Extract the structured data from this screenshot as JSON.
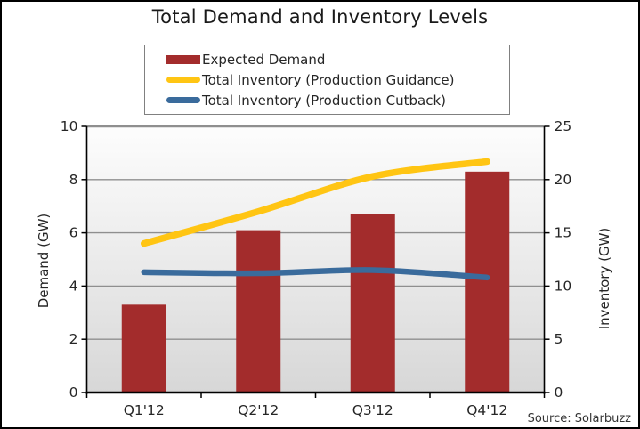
{
  "title": "Total Demand and Inventory Levels",
  "source": "Source: Solarbuzz",
  "colors": {
    "bar": "#A32C2C",
    "guidance_line": "#FFC513",
    "cutback_line": "#3A6B9C",
    "gridline": "#8F8F8F",
    "axis": "#000000",
    "plot_gradient_top": "#FDFDFD",
    "plot_gradient_mid": "#E9E9E9",
    "plot_gradient_bottom": "#D7D7D7"
  },
  "legend": {
    "items": [
      {
        "label": "Expected Demand",
        "type": "bar",
        "color": "#A32C2C"
      },
      {
        "label": "Total Inventory (Production Guidance)",
        "type": "line",
        "color": "#FFC513"
      },
      {
        "label": "Total Inventory (Production Cutback)",
        "type": "line",
        "color": "#3A6B9C"
      }
    ]
  },
  "chart_data": {
    "type": "bar",
    "subtype": "bar-line-combo",
    "title": "Total Demand and Inventory Levels",
    "categories": [
      "Q1'12",
      "Q2'12",
      "Q3'12",
      "Q4'12"
    ],
    "series": [
      {
        "name": "Expected Demand",
        "type": "bar",
        "axis": "left",
        "color": "#A32C2C",
        "values": [
          3.3,
          6.1,
          6.7,
          8.3
        ]
      },
      {
        "name": "Total Inventory (Production Guidance)",
        "type": "line",
        "axis": "right",
        "color": "#FFC513",
        "values": [
          14,
          17,
          20.3,
          21.7
        ]
      },
      {
        "name": "Total Inventory (Production Cutback)",
        "type": "line",
        "axis": "right",
        "color": "#3A6B9C",
        "values": [
          11.3,
          11.2,
          11.5,
          10.8
        ]
      }
    ],
    "left_axis": {
      "label": "Demand (GW)",
      "min": 0,
      "max": 10,
      "ticks": [
        0,
        2,
        4,
        6,
        8,
        10
      ]
    },
    "right_axis": {
      "label": "Inventory (GW)",
      "min": 0,
      "max": 25,
      "ticks": [
        0,
        5,
        10,
        15,
        20,
        25
      ]
    },
    "grid": true,
    "legend_position": "top-center",
    "source": "Source: Solarbuzz"
  }
}
